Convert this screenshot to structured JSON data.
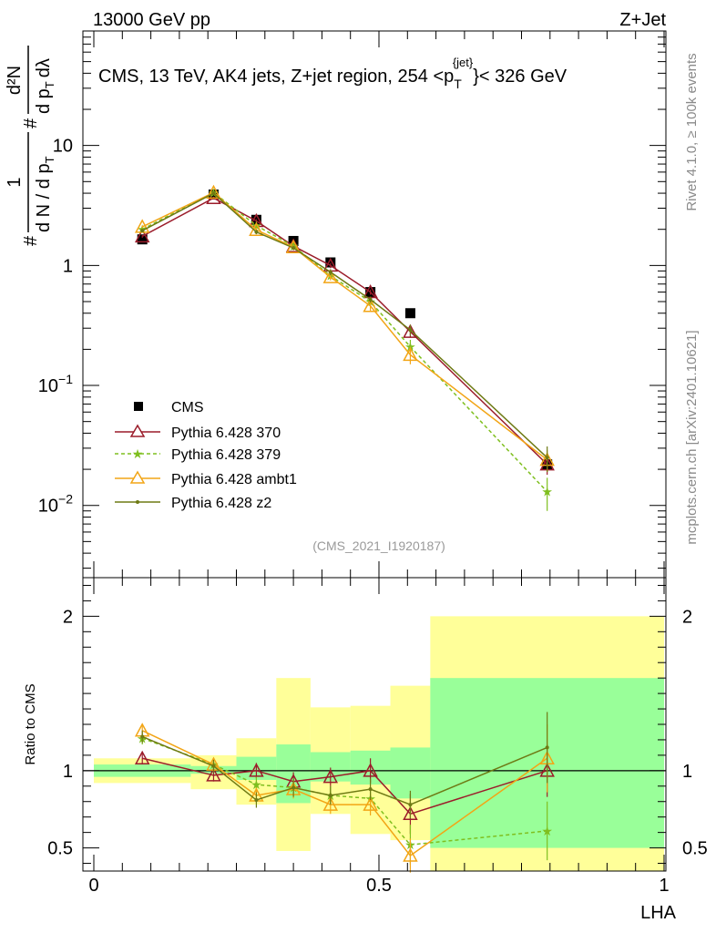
{
  "header": {
    "left": "13000 GeV pp",
    "right": "Z+Jet"
  },
  "side_labels": {
    "rivet": "Rivet 4.1.0, ≥ 100k events",
    "mcplots": "mcplots.cern.ch [arXiv:2401.10621]"
  },
  "chart_data": [
    {
      "type": "scatter",
      "panel": "main",
      "title": "CMS, 13 TeV, AK4 jets, Z+jet region, 254 <p_T^{jet}< 326 GeV",
      "title_parts": [
        "CMS, 13 TeV, AK4 jets, Z+jet region, 254 <p",
        "T",
        "{jet}",
        "}< 326 GeV"
      ],
      "analysis_tag": "(CMS_2021_I1920187)",
      "xlabel": "LHA",
      "ylabel": "1 / (dN / dp_T) · d²N / (dp_T dλ)",
      "ylabel_parts": [
        "#",
        "1",
        "d N / d p",
        "T",
        "#",
        "d²N",
        "d p",
        "T",
        "dλ"
      ],
      "xlim": [
        0,
        1
      ],
      "ylim": [
        0.0025,
        90
      ],
      "yscale": "log",
      "ytick_labels": [
        "10⁻²",
        "10⁻¹",
        "1",
        "10"
      ],
      "ytick_parts": [
        [
          "10",
          "−2"
        ],
        [
          "10",
          "−1"
        ],
        [
          "1",
          ""
        ],
        [
          "10",
          ""
        ]
      ],
      "legend_position": "middle-left",
      "series": [
        {
          "name": "CMS",
          "color": "#000000",
          "marker": "square",
          "line": "none",
          "x": [
            0.085,
            0.21,
            0.285,
            0.35,
            0.415,
            0.485,
            0.555,
            0.795
          ],
          "y": [
            1.65,
            3.9,
            2.4,
            1.6,
            1.06,
            0.6,
            0.4,
            0.022
          ],
          "yerr": [
            0.1,
            0.2,
            0.12,
            0.08,
            0.06,
            0.04,
            0.03,
            0.003
          ]
        },
        {
          "name": "Pythia 6.428 370",
          "color": "#9b1c2a",
          "marker": "open-triangle",
          "line": "solid",
          "x": [
            0.085,
            0.21,
            0.285,
            0.35,
            0.415,
            0.485,
            0.555,
            0.795
          ],
          "y": [
            1.75,
            3.65,
            2.35,
            1.45,
            1.0,
            0.6,
            0.28,
            0.022
          ],
          "yerr": [
            0.05,
            0.1,
            0.08,
            0.06,
            0.05,
            0.03,
            0.03,
            0.004
          ]
        },
        {
          "name": "Pythia 6.428 379",
          "color": "#7fbf1f",
          "marker": "star",
          "line": "dashed",
          "x": [
            0.085,
            0.21,
            0.285,
            0.35,
            0.415,
            0.485,
            0.555,
            0.795
          ],
          "y": [
            2.0,
            4.05,
            2.15,
            1.45,
            0.82,
            0.5,
            0.21,
            0.013
          ],
          "yerr": [
            0.05,
            0.1,
            0.08,
            0.06,
            0.05,
            0.03,
            0.03,
            0.004
          ]
        },
        {
          "name": "Pythia 6.428 ambt1",
          "color": "#f2a516",
          "marker": "open-triangle",
          "line": "solid",
          "x": [
            0.085,
            0.21,
            0.285,
            0.35,
            0.415,
            0.485,
            0.555,
            0.795
          ],
          "y": [
            2.1,
            4.05,
            1.98,
            1.42,
            0.8,
            0.46,
            0.18,
            0.024
          ],
          "yerr": [
            0.05,
            0.1,
            0.08,
            0.06,
            0.05,
            0.04,
            0.03,
            0.005
          ]
        },
        {
          "name": "Pythia 6.428 z2",
          "color": "#6e7a14",
          "marker": "dot",
          "line": "solid",
          "x": [
            0.085,
            0.21,
            0.285,
            0.35,
            0.415,
            0.485,
            0.555,
            0.795
          ],
          "y": [
            1.95,
            4.0,
            1.9,
            1.4,
            0.88,
            0.52,
            0.29,
            0.025
          ],
          "yerr": [
            0.05,
            0.1,
            0.08,
            0.06,
            0.05,
            0.03,
            0.03,
            0.006
          ]
        }
      ]
    },
    {
      "type": "scatter",
      "panel": "ratio",
      "xlabel": "LHA",
      "ylabel": "Ratio to CMS",
      "xlim": [
        0,
        1
      ],
      "ylim": [
        0.35,
        2.25
      ],
      "xticks": [
        0,
        0.5,
        1
      ],
      "xtick_labels": [
        "0",
        "0.5",
        "1"
      ],
      "yticks": [
        0.5,
        1,
        2
      ],
      "ytick_labels": [
        "0.5",
        "1",
        "2"
      ],
      "reference_line": 1,
      "uncertainty_bands": {
        "bins": [
          [
            0,
            0.17
          ],
          [
            0.17,
            0.25
          ],
          [
            0.25,
            0.32
          ],
          [
            0.32,
            0.38
          ],
          [
            0.38,
            0.45
          ],
          [
            0.45,
            0.52
          ],
          [
            0.52,
            0.59
          ],
          [
            0.59,
            1.0
          ]
        ],
        "stat_color": "#99ff99",
        "syst_color": "#ffff99",
        "stat_low": [
          0.96,
          0.98,
          0.94,
          0.79,
          0.93,
          0.91,
          0.82,
          0.5
        ],
        "stat_high": [
          1.04,
          1.03,
          1.09,
          1.17,
          1.12,
          1.13,
          1.15,
          1.6
        ],
        "syst_low": [
          0.92,
          0.88,
          0.78,
          0.48,
          0.72,
          0.59,
          0.55,
          0.35
        ],
        "syst_high": [
          1.08,
          1.1,
          1.21,
          1.6,
          1.41,
          1.42,
          1.55,
          2.0
        ]
      },
      "series": [
        {
          "name": "Pythia 6.428 370",
          "color": "#9b1c2a",
          "marker": "open-triangle",
          "line": "solid",
          "x": [
            0.085,
            0.21,
            0.285,
            0.35,
            0.415,
            0.485,
            0.555,
            0.795
          ],
          "y": [
            1.08,
            0.97,
            1.0,
            0.93,
            0.96,
            1.0,
            0.72,
            1.0
          ],
          "yerr": [
            0.04,
            0.04,
            0.05,
            0.06,
            0.06,
            0.08,
            0.13,
            0.17
          ]
        },
        {
          "name": "Pythia 6.428 379",
          "color": "#7fbf1f",
          "marker": "star",
          "line": "dashed",
          "x": [
            0.085,
            0.21,
            0.285,
            0.35,
            0.415,
            0.485,
            0.555,
            0.795
          ],
          "y": [
            1.21,
            1.04,
            0.91,
            0.89,
            0.84,
            0.82,
            0.52,
            0.61
          ],
          "yerr": [
            0.04,
            0.04,
            0.05,
            0.06,
            0.06,
            0.07,
            0.13,
            0.19
          ]
        },
        {
          "name": "Pythia 6.428 ambt1",
          "color": "#f2a516",
          "marker": "open-triangle",
          "line": "solid",
          "x": [
            0.085,
            0.21,
            0.285,
            0.35,
            0.415,
            0.485,
            0.555,
            0.795
          ],
          "y": [
            1.26,
            1.04,
            0.84,
            0.88,
            0.78,
            0.78,
            0.45,
            1.08
          ],
          "yerr": [
            0.04,
            0.04,
            0.05,
            0.06,
            0.06,
            0.07,
            0.11,
            0.22
          ]
        },
        {
          "name": "Pythia 6.428 z2",
          "color": "#6e7a14",
          "marker": "dot",
          "line": "solid",
          "x": [
            0.085,
            0.21,
            0.285,
            0.35,
            0.415,
            0.485,
            0.555,
            0.795
          ],
          "y": [
            1.22,
            1.03,
            0.81,
            0.89,
            0.84,
            0.88,
            0.78,
            1.15
          ],
          "yerr": [
            0.04,
            0.04,
            0.05,
            0.06,
            0.06,
            0.07,
            0.09,
            0.23
          ]
        }
      ]
    }
  ]
}
